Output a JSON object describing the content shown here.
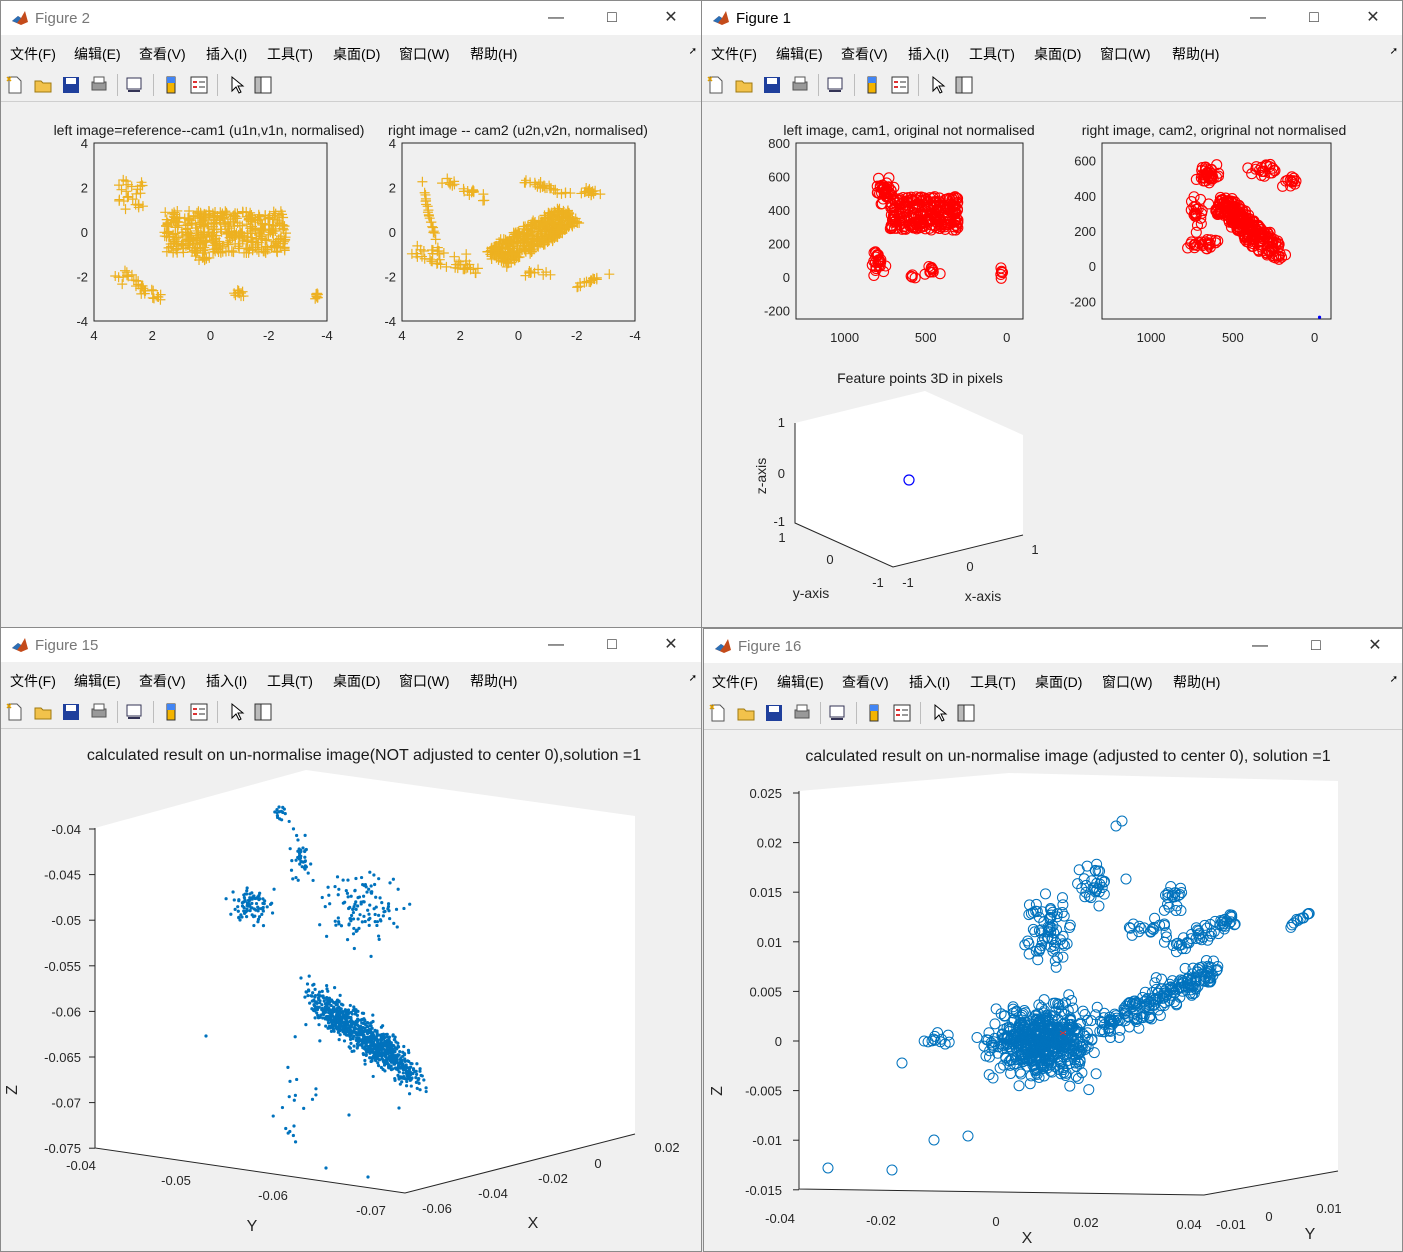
{
  "menu": [
    "文件(F)",
    "编辑(E)",
    "查看(V)",
    "插入(I)",
    "工具(T)",
    "桌面(D)",
    "窗口(W)",
    "帮助(H)"
  ],
  "colors": {
    "gold": "#EDB120",
    "red": "#FF0000",
    "blue_marker": "#0000FF",
    "matlab_blue": "#0072BD"
  },
  "icons": [
    "new-file-icon",
    "open-folder-icon",
    "save-icon",
    "print-icon",
    "link-plot-icon",
    "colorbar-icon",
    "legend-icon",
    "arrow-pointer-icon",
    "property-inspector-icon"
  ],
  "windows": {
    "fig2": {
      "title": "Figure 2",
      "plots": [
        {
          "title": "left image=reference--cam1 (u1n,v1n, normalised)",
          "xticks": [
            "4",
            "2",
            "0",
            "-2",
            "-4"
          ],
          "yticks": [
            "4",
            "2",
            "0",
            "-2",
            "-4"
          ]
        },
        {
          "title": "right image -- cam2 (u2n,v2n, normalised)",
          "xticks": [
            "4",
            "2",
            "0",
            "-2",
            "-4"
          ],
          "yticks": [
            "4",
            "2",
            "0",
            "-2",
            "-4"
          ]
        }
      ]
    },
    "fig1": {
      "title": "Figure 1",
      "plots": [
        {
          "title": "left image, cam1, original not normalised",
          "xticks": [
            "1000",
            "500",
            "0"
          ],
          "yticks": [
            "800",
            "600",
            "400",
            "200",
            "0",
            "-200"
          ]
        },
        {
          "title": "right image, cam2, origrinal not normalised",
          "xticks": [
            "1000",
            "500",
            "0"
          ],
          "yticks": [
            "600",
            "400",
            "200",
            "0",
            "-200"
          ]
        }
      ],
      "plot3d": {
        "title": "Feature points 3D in pixels",
        "xlabel": "x-axis",
        "ylabel": "y-axis",
        "zlabel": "z-axis",
        "zticks": [
          "1",
          "0",
          "-1"
        ],
        "yticks": [
          "1",
          "0",
          "-1"
        ],
        "xticks": [
          "-1",
          "0",
          "1"
        ]
      }
    },
    "fig15": {
      "title": "Figure 15",
      "plot": {
        "title": "calculated result on un-normalise image(NOT adjusted to center 0),solution =1",
        "zlabel": "Z",
        "xlabel": "X",
        "ylabel": "Y",
        "zticks": [
          "-0.04",
          "-0.045",
          "-0.05",
          "-0.055",
          "-0.06",
          "-0.065",
          "-0.07",
          "-0.075"
        ],
        "yticks": [
          "-0.04",
          "-0.05",
          "-0.06",
          "-0.07"
        ],
        "xticks": [
          "-0.06",
          "-0.04",
          "-0.02",
          "0",
          "0.02"
        ]
      }
    },
    "fig16": {
      "title": "Figure 16",
      "plot": {
        "title": "calculated result on un-normalise image (adjusted to center 0), solution =1",
        "zlabel": "Z",
        "xlabel": "X",
        "ylabel": "Y",
        "zticks": [
          "0.025",
          "0.02",
          "0.015",
          "0.01",
          "0.005",
          "0",
          "-0.005",
          "-0.01",
          "-0.015"
        ],
        "xticks": [
          "-0.04",
          "-0.02",
          "0",
          "0.02",
          "0.04"
        ],
        "yticks": [
          "-0.01",
          "0",
          "0.01"
        ]
      }
    }
  },
  "chart_data": [
    {
      "type": "scatter",
      "title": "left image=reference--cam1 (u1n,v1n, normalised)",
      "marker": "+",
      "color": "#EDB120",
      "xlim": [
        -4,
        4
      ],
      "ylim": [
        -4,
        4
      ],
      "x_reversed": true,
      "clusters": [
        {
          "x_range": [
            -2.5,
            1.5
          ],
          "y_range": [
            -1,
            1
          ]
        },
        {
          "x_range": [
            1.5,
            3.5
          ],
          "y_range": [
            -3,
            -1.5
          ]
        },
        {
          "x_range": [
            2,
            3
          ],
          "y_range": [
            1,
            2.5
          ]
        }
      ]
    },
    {
      "type": "scatter",
      "title": "right image -- cam2 (u2n,v2n, normalised)",
      "marker": "+",
      "color": "#EDB120",
      "xlim": [
        -4,
        4
      ],
      "ylim": [
        -4,
        4
      ],
      "x_reversed": true
    },
    {
      "type": "scatter",
      "title": "left image, cam1, original not normalised",
      "marker": "o",
      "color": "#FF0000",
      "xlim": [
        -100,
        1300
      ],
      "ylim": [
        -250,
        800
      ],
      "x_reversed": true
    },
    {
      "type": "scatter",
      "title": "right image, cam2, origrinal not normalised",
      "marker": "o",
      "color": "#FF0000",
      "xlim": [
        -100,
        1300
      ],
      "ylim": [
        -300,
        700
      ],
      "x_reversed": true
    },
    {
      "type": "scatter3d",
      "title": "Feature points 3D in pixels",
      "points": [
        {
          "x": 0,
          "y": 0,
          "z": 0
        }
      ],
      "marker": "o",
      "color": "#0000FF"
    },
    {
      "type": "scatter3d",
      "title": "calculated result on un-normalise image(NOT adjusted to center 0),solution =1",
      "marker": ".",
      "color": "#0072BD",
      "zlim": [
        -0.075,
        -0.04
      ]
    },
    {
      "type": "scatter3d",
      "title": "calculated result on un-normalise image (adjusted to center 0), solution =1",
      "marker": "o",
      "color": "#0072BD",
      "zlim": [
        -0.015,
        0.025
      ]
    }
  ]
}
